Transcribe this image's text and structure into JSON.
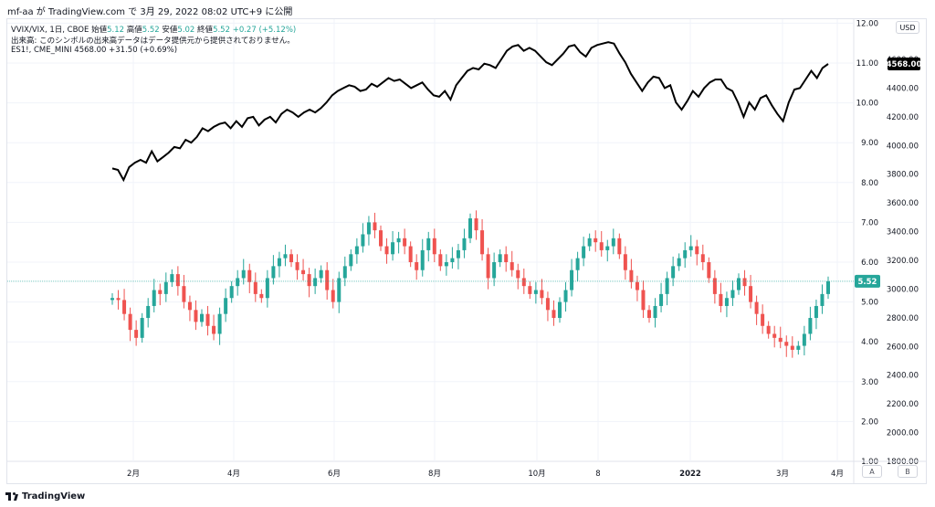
{
  "header": {
    "title": "mf-aa が TradingView.com で 3月 29, 2022 08:02 UTC+9 に公開"
  },
  "legend": {
    "symbol": "VVIX/VIX, 1日, CBOE",
    "open_label": "始値",
    "open": "5.12",
    "high_label": "高値",
    "high": "5.52",
    "low_label": "安値",
    "low": "5.02",
    "close_label": "終値",
    "close": "5.52",
    "change": "+0.27 (+5.12%)",
    "volume_note": "出来高: このシンボルの出来高データはデータ提供元から提供されておりません。",
    "second_symbol": "ES1!, CME_MINI",
    "second_value": "4568.00",
    "second_change": "+31.50 (+0.69%)"
  },
  "price_axis": {
    "currency": "USD",
    "last_es": "4568.00",
    "last_ratio": "5.52"
  },
  "footer": {
    "brand": "TradingView",
    "btn_a": "A",
    "btn_b": "B"
  },
  "colors": {
    "up": "#26a69a",
    "down": "#ef5350",
    "line": "#000000",
    "grid": "#f0f3fa",
    "axis_text": "#131722"
  },
  "chart_data": {
    "type": "line",
    "x_ticks": [
      "2月",
      "4月",
      "6月",
      "8月",
      "10月",
      "8",
      "2022",
      "3月",
      "4月"
    ],
    "left_scale": {
      "ticks": [
        "1.00",
        "2.00",
        "3.00",
        "4.00",
        "5.00",
        "6.00",
        "7.00",
        "8.00",
        "9.00",
        "10.00",
        "11.00",
        "12.00"
      ],
      "ylim": [
        1,
        12
      ]
    },
    "right_scale": {
      "ticks": [
        "1800.00",
        "2000.00",
        "2200.00",
        "2400.00",
        "2600.00",
        "2800.00",
        "3000.00",
        "3200.00",
        "3400.00",
        "3600.00",
        "3800.00",
        "4000.00",
        "4200.00",
        "4400.00",
        "4600.00"
      ],
      "ylim": [
        1800,
        4650
      ]
    },
    "series": [
      {
        "name": "ES1!, CME_MINI",
        "scale": "right",
        "values": [
          3840,
          3830,
          3760,
          3850,
          3880,
          3900,
          3880,
          3960,
          3890,
          3920,
          3950,
          3990,
          3980,
          4040,
          4020,
          4060,
          4120,
          4100,
          4130,
          4150,
          4160,
          4120,
          4170,
          4130,
          4190,
          4200,
          4140,
          4180,
          4200,
          4160,
          4220,
          4250,
          4230,
          4200,
          4230,
          4250,
          4230,
          4260,
          4300,
          4350,
          4380,
          4400,
          4420,
          4410,
          4380,
          4390,
          4430,
          4410,
          4440,
          4470,
          4450,
          4460,
          4430,
          4400,
          4420,
          4440,
          4390,
          4350,
          4340,
          4380,
          4320,
          4420,
          4470,
          4520,
          4540,
          4530,
          4570,
          4560,
          4540,
          4600,
          4660,
          4690,
          4700,
          4660,
          4680,
          4660,
          4620,
          4580,
          4560,
          4600,
          4640,
          4690,
          4700,
          4650,
          4620,
          4680,
          4700,
          4710,
          4720,
          4710,
          4640,
          4580,
          4500,
          4440,
          4380,
          4440,
          4480,
          4470,
          4400,
          4420,
          4300,
          4250,
          4310,
          4380,
          4340,
          4400,
          4440,
          4460,
          4460,
          4400,
          4380,
          4300,
          4200,
          4300,
          4250,
          4330,
          4350,
          4280,
          4220,
          4170,
          4300,
          4390,
          4400,
          4460,
          4520,
          4470,
          4540,
          4568
        ]
      },
      {
        "name": "VVIX/VIX",
        "scale": "left",
        "type": "candlestick",
        "values": [
          5.1,
          5.05,
          4.7,
          4.3,
          4.1,
          4.6,
          4.9,
          5.3,
          5.2,
          5.5,
          5.7,
          5.4,
          5.0,
          4.8,
          4.5,
          4.7,
          4.4,
          4.2,
          4.7,
          5.1,
          5.4,
          5.6,
          5.8,
          5.5,
          5.2,
          5.1,
          5.6,
          5.9,
          6.1,
          6.2,
          6.0,
          5.8,
          5.7,
          5.4,
          5.6,
          5.8,
          5.3,
          5.0,
          5.6,
          5.9,
          6.2,
          6.4,
          6.7,
          7.0,
          6.8,
          6.4,
          6.2,
          6.5,
          6.6,
          6.4,
          6.0,
          5.8,
          6.3,
          6.6,
          6.2,
          5.9,
          6.0,
          6.1,
          6.3,
          6.6,
          7.1,
          6.8,
          6.2,
          5.6,
          6.0,
          6.2,
          6.0,
          5.8,
          5.6,
          5.4,
          5.2,
          5.3,
          5.1,
          4.8,
          4.6,
          5.0,
          5.3,
          5.8,
          6.1,
          6.4,
          6.6,
          6.5,
          6.3,
          6.4,
          6.6,
          6.2,
          5.8,
          5.5,
          5.3,
          4.8,
          4.6,
          4.9,
          5.2,
          5.6,
          5.9,
          6.1,
          6.3,
          6.4,
          6.2,
          6.0,
          5.6,
          5.2,
          4.9,
          5.1,
          5.3,
          5.6,
          5.4,
          5.0,
          4.7,
          4.4,
          4.2,
          4.1,
          4.0,
          3.9,
          3.8,
          3.9,
          4.2,
          4.6,
          4.9,
          5.2,
          5.52
        ]
      }
    ]
  }
}
